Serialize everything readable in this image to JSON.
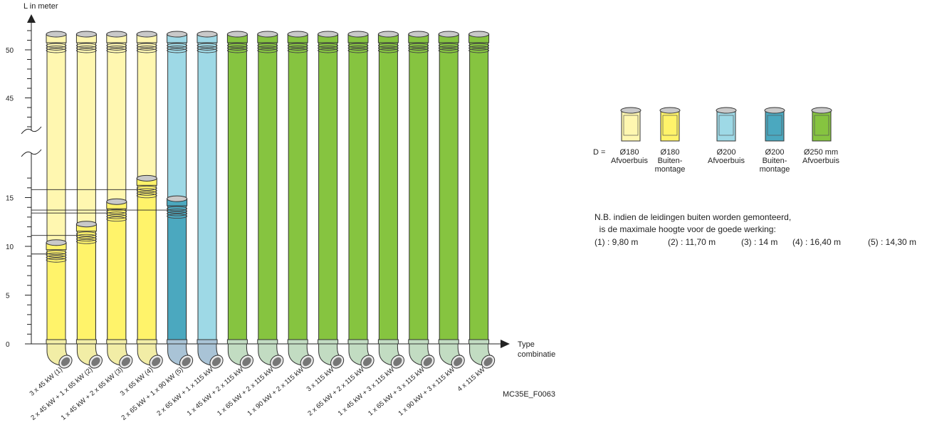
{
  "chart_data": {
    "type": "bar",
    "ylabel": "L in meter",
    "xlabel_lines": [
      "Type",
      "combinatie"
    ],
    "yticks": [
      0,
      5,
      10,
      15,
      45,
      50
    ],
    "ylim": [
      0,
      52
    ],
    "axis_break": true,
    "categories": [
      "3 x 45 kW (1)",
      "2 x 45 kW + 1 x 65 kW (2)",
      "1 x 45 kW + 2 x 65 kW (3)",
      "3 x 65 kW (4)",
      "2 x 65 kW + 1 x 90 kW (5)",
      "2 x 65 kW + 1 x 115 kW",
      "1 x 45 kW + 2 x 115 kW",
      "1 x 65 kW + 2 x 115 kW",
      "1 x 90 kW + 2 x 115 kW",
      "3 x 115 kW",
      "2 x 65 kW + 2 x 115 kW",
      "1 x 45 kW + 3 x 115 kW",
      "1 x 65 kW + 3 x 115 kW",
      "1 x 90 kW + 3 x 115 kW",
      "4 x 115 kW"
    ],
    "series": [
      {
        "name": "Buitenmontage",
        "values": [
          9.8,
          11.7,
          14,
          16.4,
          14.3,
          null,
          null,
          null,
          null,
          null,
          null,
          null,
          null,
          null,
          null
        ]
      },
      {
        "name": "Afvoerbuis",
        "values": [
          50,
          50,
          50,
          50,
          50,
          50,
          50,
          50,
          50,
          50,
          50,
          50,
          50,
          50,
          50
        ]
      }
    ],
    "diameters_mm": [
      180,
      180,
      180,
      180,
      200,
      200,
      250,
      250,
      250,
      250,
      250,
      250,
      250,
      250,
      250
    ],
    "colors": {
      "d180_afvoer": "#fff7b0",
      "d180_buiten": "#fff36a",
      "d200_afvoer": "#9ed9e6",
      "d200_buiten": "#4ba8bf",
      "d250_afvoer": "#86c440",
      "cap_light": "#c9c9c9",
      "elbow_yellow": "#f2eda6",
      "elbow_blue": "#a9c3d6",
      "elbow_green": "#c2dcc2",
      "outline": "#333333"
    }
  },
  "legend": {
    "prefix": "D =",
    "items": [
      {
        "line1": "Ø180",
        "line2": "Afvoerbuis",
        "line3": "",
        "color": "#fff7b0"
      },
      {
        "line1": "Ø180",
        "line2": "Buiten-",
        "line3": "montage",
        "color": "#fff36a"
      },
      {
        "line1": "Ø200",
        "line2": "Afvoerbuis",
        "line3": "",
        "color": "#9ed9e6"
      },
      {
        "line1": "Ø200",
        "line2": "Buiten-",
        "line3": "montage",
        "color": "#4ba8bf"
      },
      {
        "line1": "Ø250 mm",
        "line2": "Afvoerbuis",
        "line3": "",
        "color": "#86c440"
      }
    ]
  },
  "note": {
    "line1": "N.B. indien de leidingen buiten worden gemonteerd,",
    "line2": "  is de maximale hoogte voor de goede werking:",
    "values": [
      "(1) : 9,80 m",
      "(2) : 11,70 m",
      "(3) : 14 m",
      "(4) : 16,40 m",
      "(5) : 14,30 m"
    ]
  },
  "figure_code": "MC35E_F0063"
}
